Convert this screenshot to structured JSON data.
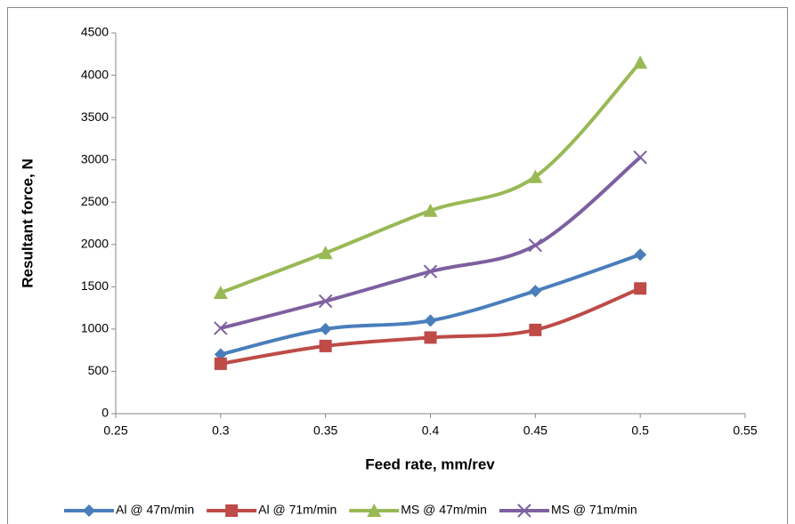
{
  "chart_data": {
    "type": "line",
    "x_label": "Feed rate, mm/rev",
    "y_label": "Resultant force, N",
    "x": [
      0.3,
      0.35,
      0.4,
      0.45,
      0.5
    ],
    "series": [
      {
        "name": "Al @ 47m/min",
        "color": "#4a7ebb",
        "marker": "diamond",
        "values": [
          700,
          1000,
          1100,
          1450,
          1880
        ]
      },
      {
        "name": "Al @ 71m/min",
        "color": "#be4b48",
        "marker": "square",
        "values": [
          590,
          800,
          900,
          990,
          1480
        ]
      },
      {
        "name": "MS @ 47m/min",
        "color": "#98b954",
        "marker": "triangle",
        "values": [
          1430,
          1900,
          2400,
          2800,
          4150
        ]
      },
      {
        "name": "MS @ 71m/min",
        "color": "#7d60a0",
        "marker": "x",
        "values": [
          1010,
          1330,
          1680,
          1990,
          3030
        ]
      }
    ],
    "xlim": [
      0.25,
      0.55
    ],
    "xticks": [
      0.25,
      0.3,
      0.35,
      0.4,
      0.45,
      0.5,
      0.55
    ],
    "ylim": [
      0,
      4500
    ],
    "yticks": [
      0,
      500,
      1000,
      1500,
      2000,
      2500,
      3000,
      3500,
      4000,
      4500
    ],
    "smooth": true,
    "grid": false,
    "legend": "bottom"
  }
}
